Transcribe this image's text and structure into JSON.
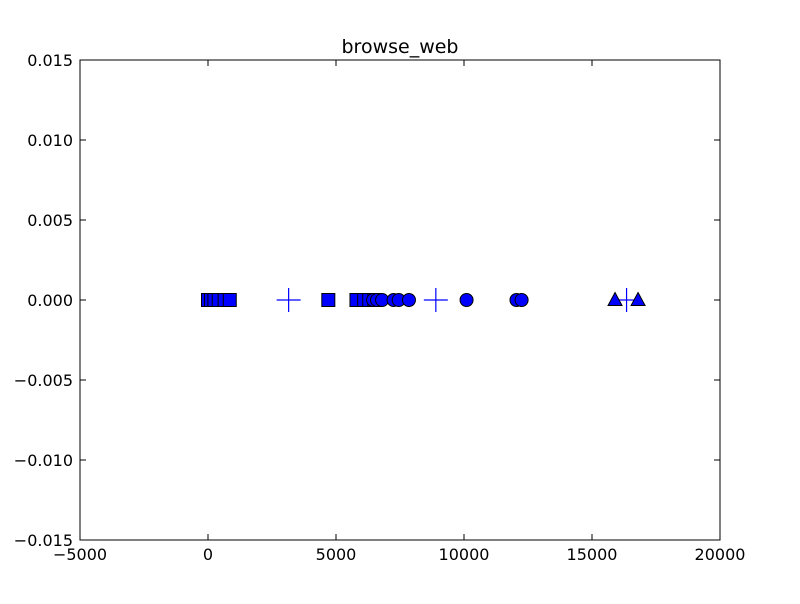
{
  "chart_data": {
    "type": "scatter",
    "title": "browse_web",
    "xlabel": "",
    "ylabel": "",
    "xlim": [
      -5000,
      20000
    ],
    "ylim": [
      -0.015,
      0.015
    ],
    "xticks": [
      -5000,
      0,
      5000,
      10000,
      15000,
      20000
    ],
    "yticks": [
      -0.015,
      -0.01,
      -0.005,
      0.0,
      0.005,
      0.01,
      0.015
    ],
    "xtick_labels": [
      "−5000",
      "0",
      "5000",
      "10000",
      "15000",
      "20000"
    ],
    "ytick_labels": [
      "−0.015",
      "−0.010",
      "−0.005",
      "0.000",
      "0.005",
      "0.010",
      "0.015"
    ],
    "grid": false,
    "marker_color": "#0000ff",
    "series": [
      {
        "marker": "square",
        "x": [
          0,
          120,
          250,
          420,
          650,
          850,
          4700,
          5800,
          6100,
          6300,
          6500
        ],
        "y": [
          0,
          0,
          0,
          0,
          0,
          0,
          0,
          0,
          0,
          0,
          0
        ]
      },
      {
        "marker": "plus",
        "x": [
          3150,
          8900,
          16350
        ],
        "y": [
          0,
          0,
          0
        ]
      },
      {
        "marker": "circle",
        "x": [
          6450,
          6600,
          6800,
          7250,
          7450,
          7850,
          10100,
          12050,
          12250
        ],
        "y": [
          0,
          0,
          0,
          0,
          0,
          0,
          0,
          0,
          0
        ]
      },
      {
        "marker": "triangle",
        "x": [
          15900,
          16800
        ],
        "y": [
          0,
          0
        ]
      }
    ]
  }
}
